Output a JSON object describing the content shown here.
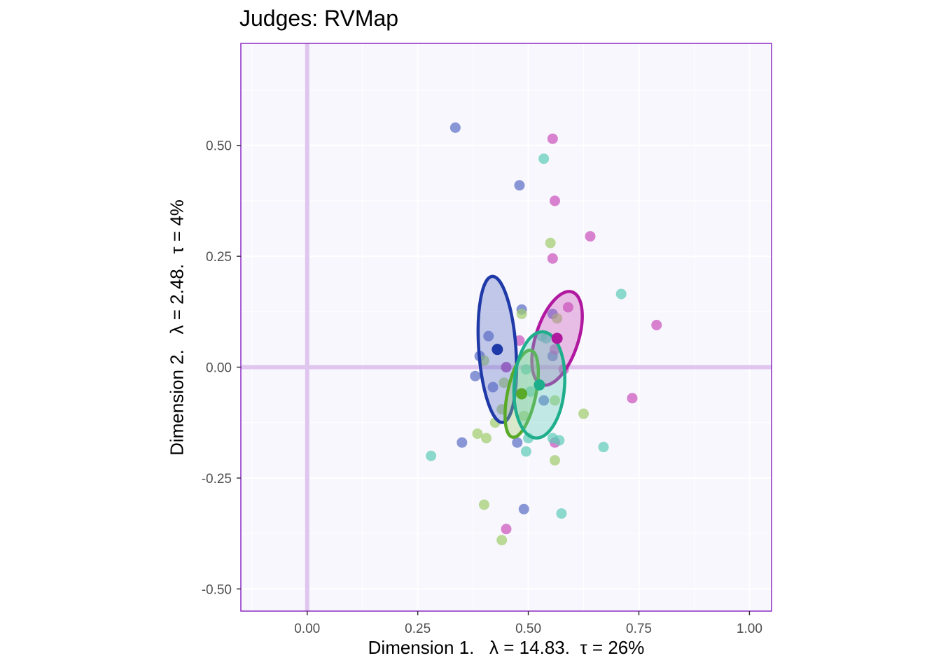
{
  "chart_data": {
    "type": "scatter",
    "title": "Judges: RVMap",
    "xlabel": "Dimension 1.   λ = 14.83.  τ = 26%",
    "ylabel": "Dimension 2.   λ = 2.48.  τ = 4%",
    "xlim": [
      -0.15,
      1.05
    ],
    "ylim": [
      -0.55,
      0.73
    ],
    "x_ticks": [
      0.0,
      0.25,
      0.5,
      0.75,
      1.0
    ],
    "x_tick_labels": [
      "0.00",
      "0.25",
      "0.50",
      "0.75",
      "1.00"
    ],
    "y_ticks": [
      0.5,
      0.25,
      0.0,
      -0.25,
      -0.5
    ],
    "y_tick_labels": [
      "0.50",
      "0.25",
      "0.00",
      "-0.25",
      "-0.50"
    ],
    "grid": true,
    "background_color": "#f8f7fe",
    "border_color": "#8b2cc4",
    "zero_line_color": "#e0c6ee",
    "series": [
      {
        "color": "#5a6cc4",
        "mean_color": "#1f3aa8",
        "mean": [
          0.43,
          0.04
        ],
        "ellipse": {
          "cx": 0.43,
          "cy": 0.04,
          "rx": 0.042,
          "ry": 0.165,
          "angle": -4
        },
        "points": [
          [
            0.335,
            0.54
          ],
          [
            0.48,
            0.41
          ],
          [
            0.485,
            0.13
          ],
          [
            0.41,
            0.07
          ],
          [
            0.39,
            0.025
          ],
          [
            0.38,
            -0.02
          ],
          [
            0.42,
            -0.045
          ],
          [
            0.35,
            -0.17
          ],
          [
            0.475,
            -0.17
          ],
          [
            0.49,
            -0.32
          ],
          [
            0.535,
            -0.075
          ],
          [
            0.555,
            0.12
          ],
          [
            0.555,
            0.025
          ],
          [
            0.45,
            0.0
          ]
        ]
      },
      {
        "color": "#c94fbb",
        "mean_color": "#b0189f",
        "mean": [
          0.565,
          0.065
        ],
        "ellipse": {
          "cx": 0.565,
          "cy": 0.065,
          "rx": 0.048,
          "ry": 0.11,
          "angle": 18
        },
        "points": [
          [
            0.555,
            0.515
          ],
          [
            0.56,
            0.375
          ],
          [
            0.555,
            0.245
          ],
          [
            0.64,
            0.295
          ],
          [
            0.79,
            0.095
          ],
          [
            0.735,
            -0.07
          ],
          [
            0.56,
            -0.17
          ],
          [
            0.45,
            -0.365
          ],
          [
            0.48,
            0.06
          ],
          [
            0.59,
            0.135
          ],
          [
            0.58,
            -0.005
          ],
          [
            0.56,
            0.04
          ],
          [
            0.45,
            0.0
          ]
        ]
      },
      {
        "color": "#a0cc6b",
        "mean_color": "#5aaa2a",
        "mean": [
          0.485,
          -0.06
        ],
        "ellipse": {
          "cx": 0.485,
          "cy": -0.06,
          "rx": 0.032,
          "ry": 0.1,
          "angle": 12
        },
        "points": [
          [
            0.55,
            0.28
          ],
          [
            0.485,
            0.12
          ],
          [
            0.4,
            0.015
          ],
          [
            0.445,
            -0.035
          ],
          [
            0.44,
            -0.095
          ],
          [
            0.425,
            -0.125
          ],
          [
            0.385,
            -0.15
          ],
          [
            0.405,
            -0.16
          ],
          [
            0.4,
            -0.31
          ],
          [
            0.44,
            -0.39
          ],
          [
            0.56,
            -0.21
          ],
          [
            0.625,
            -0.105
          ],
          [
            0.56,
            -0.075
          ],
          [
            0.565,
            0.11
          ],
          [
            0.49,
            -0.11
          ]
        ]
      },
      {
        "color": "#5dcbb6",
        "mean_color": "#1fae8c",
        "mean": [
          0.525,
          -0.04
        ],
        "ellipse": {
          "cx": 0.525,
          "cy": -0.04,
          "rx": 0.057,
          "ry": 0.12,
          "angle": 4
        },
        "points": [
          [
            0.535,
            0.47
          ],
          [
            0.71,
            0.165
          ],
          [
            0.28,
            -0.2
          ],
          [
            0.495,
            -0.19
          ],
          [
            0.5,
            -0.16
          ],
          [
            0.555,
            -0.16
          ],
          [
            0.57,
            -0.165
          ],
          [
            0.575,
            -0.33
          ],
          [
            0.67,
            -0.18
          ],
          [
            0.505,
            -0.055
          ],
          [
            0.53,
            0.07
          ],
          [
            0.495,
            -0.005
          ],
          [
            0.54,
            0.065
          ]
        ]
      }
    ]
  }
}
